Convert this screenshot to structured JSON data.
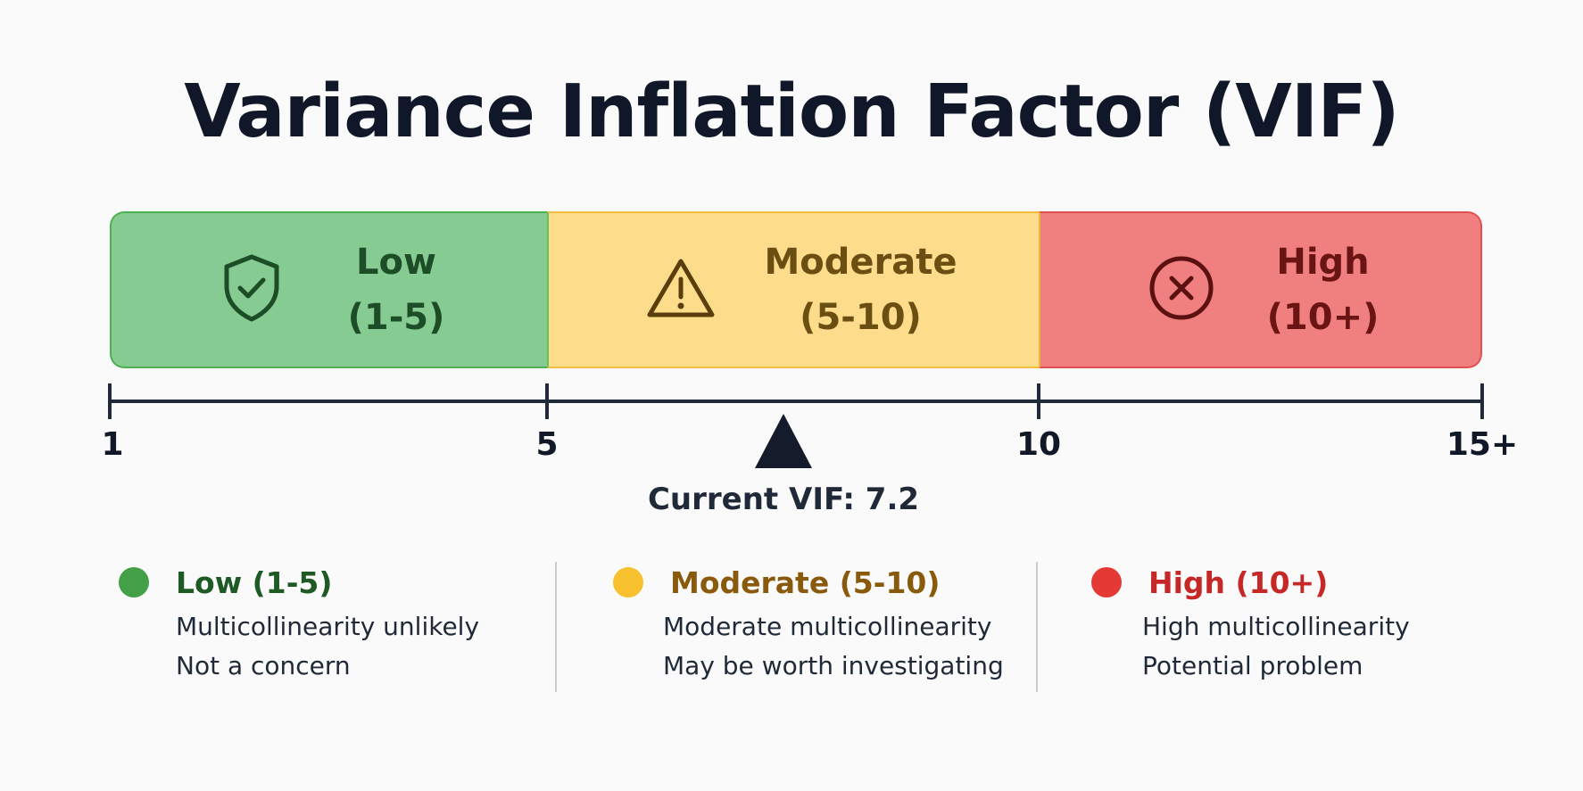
{
  "title": "Variance Inflation Factor (VIF)",
  "segments": [
    {
      "name": "Low",
      "range": "(1-5)",
      "icon": "shield-check-icon",
      "color": "#86cb92"
    },
    {
      "name": "Moderate",
      "range": "(5-10)",
      "icon": "warning-triangle-icon",
      "color": "#fddc8c"
    },
    {
      "name": "High",
      "range": "(10+)",
      "icon": "x-circle-icon",
      "color": "#f07f7f"
    }
  ],
  "axis": {
    "ticks": [
      "1",
      "5",
      "10",
      "15+"
    ]
  },
  "current": {
    "label": "Current VIF: 7.2",
    "value": 7.2
  },
  "legend": [
    {
      "title": "Low (1-5)",
      "color": "#43a047",
      "text_color": "#1e5a23",
      "lines": [
        "Multicollinearity unlikely",
        "Not a concern"
      ]
    },
    {
      "title": "Moderate (5-10)",
      "color": "#f6c02e",
      "text_color": "#8a5a0c",
      "lines": [
        "Moderate multicollinearity",
        "May be worth investigating"
      ]
    },
    {
      "title": "High (10+)",
      "color": "#e53935",
      "text_color": "#c62828",
      "lines": [
        "High multicollinearity",
        "Potential problem"
      ]
    }
  ]
}
